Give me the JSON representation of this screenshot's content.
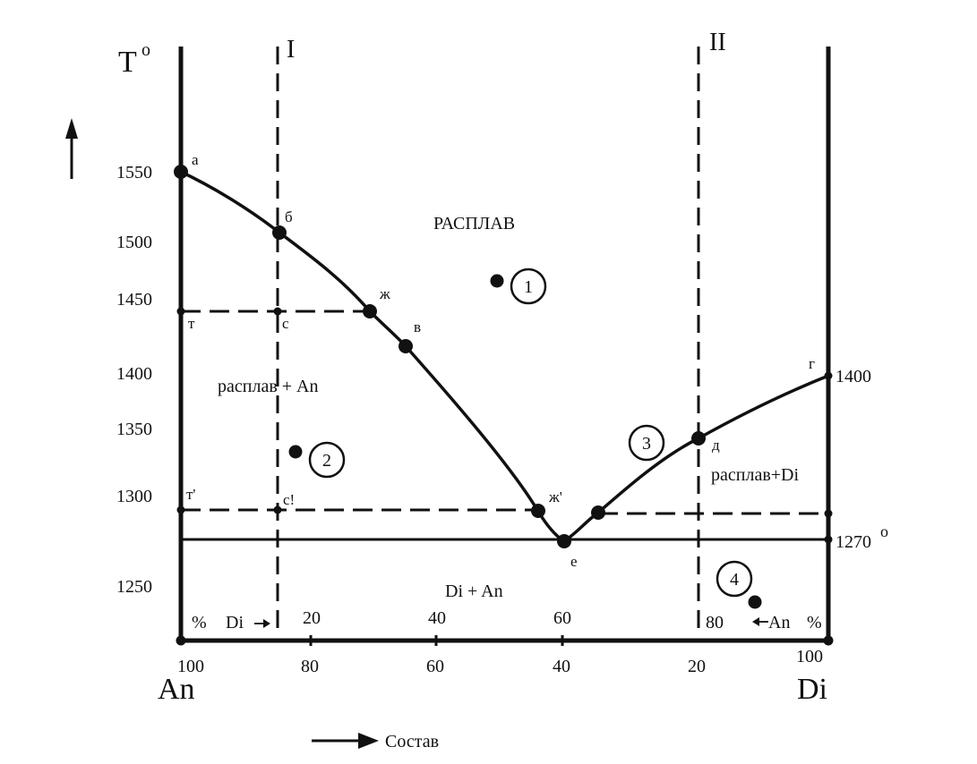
{
  "temperature_axis": {
    "title": "T",
    "title_superscript": "o",
    "ticks": [
      "1550",
      "1500",
      "1450",
      "1400",
      "1350",
      "1300",
      "1250"
    ]
  },
  "composition_axis": {
    "bottom_ticks": [
      "100",
      "80",
      "60",
      "40",
      "20",
      "100"
    ],
    "top_ticks": [
      "20",
      "40",
      "60",
      "80"
    ],
    "left_endmember": "An",
    "right_endmember": "Di",
    "percent_left": "%",
    "percent_right": "%",
    "di_arrow_label": "Di",
    "an_arrow_label": "An",
    "arrow_label": "Состав"
  },
  "sections": {
    "left": "I",
    "right": "II"
  },
  "points": {
    "a": "а",
    "b": "б",
    "zh": "ж",
    "v": "в",
    "t": "т",
    "s": "с",
    "t_prime": "т'",
    "s_prime": "с!",
    "zh_prime": "ж'",
    "e": "е",
    "d": "д",
    "g": "г"
  },
  "regions": {
    "melt": "РАСПЛАВ",
    "melt_an": "расплав + An",
    "melt_di": "расплав+Di",
    "di_an": "Di + An"
  },
  "temperatures": {
    "di_melting": "1400",
    "eutectic": "1270",
    "eutectic_superscript": "о"
  },
  "circled_points": [
    "1",
    "2",
    "3",
    "4"
  ]
}
